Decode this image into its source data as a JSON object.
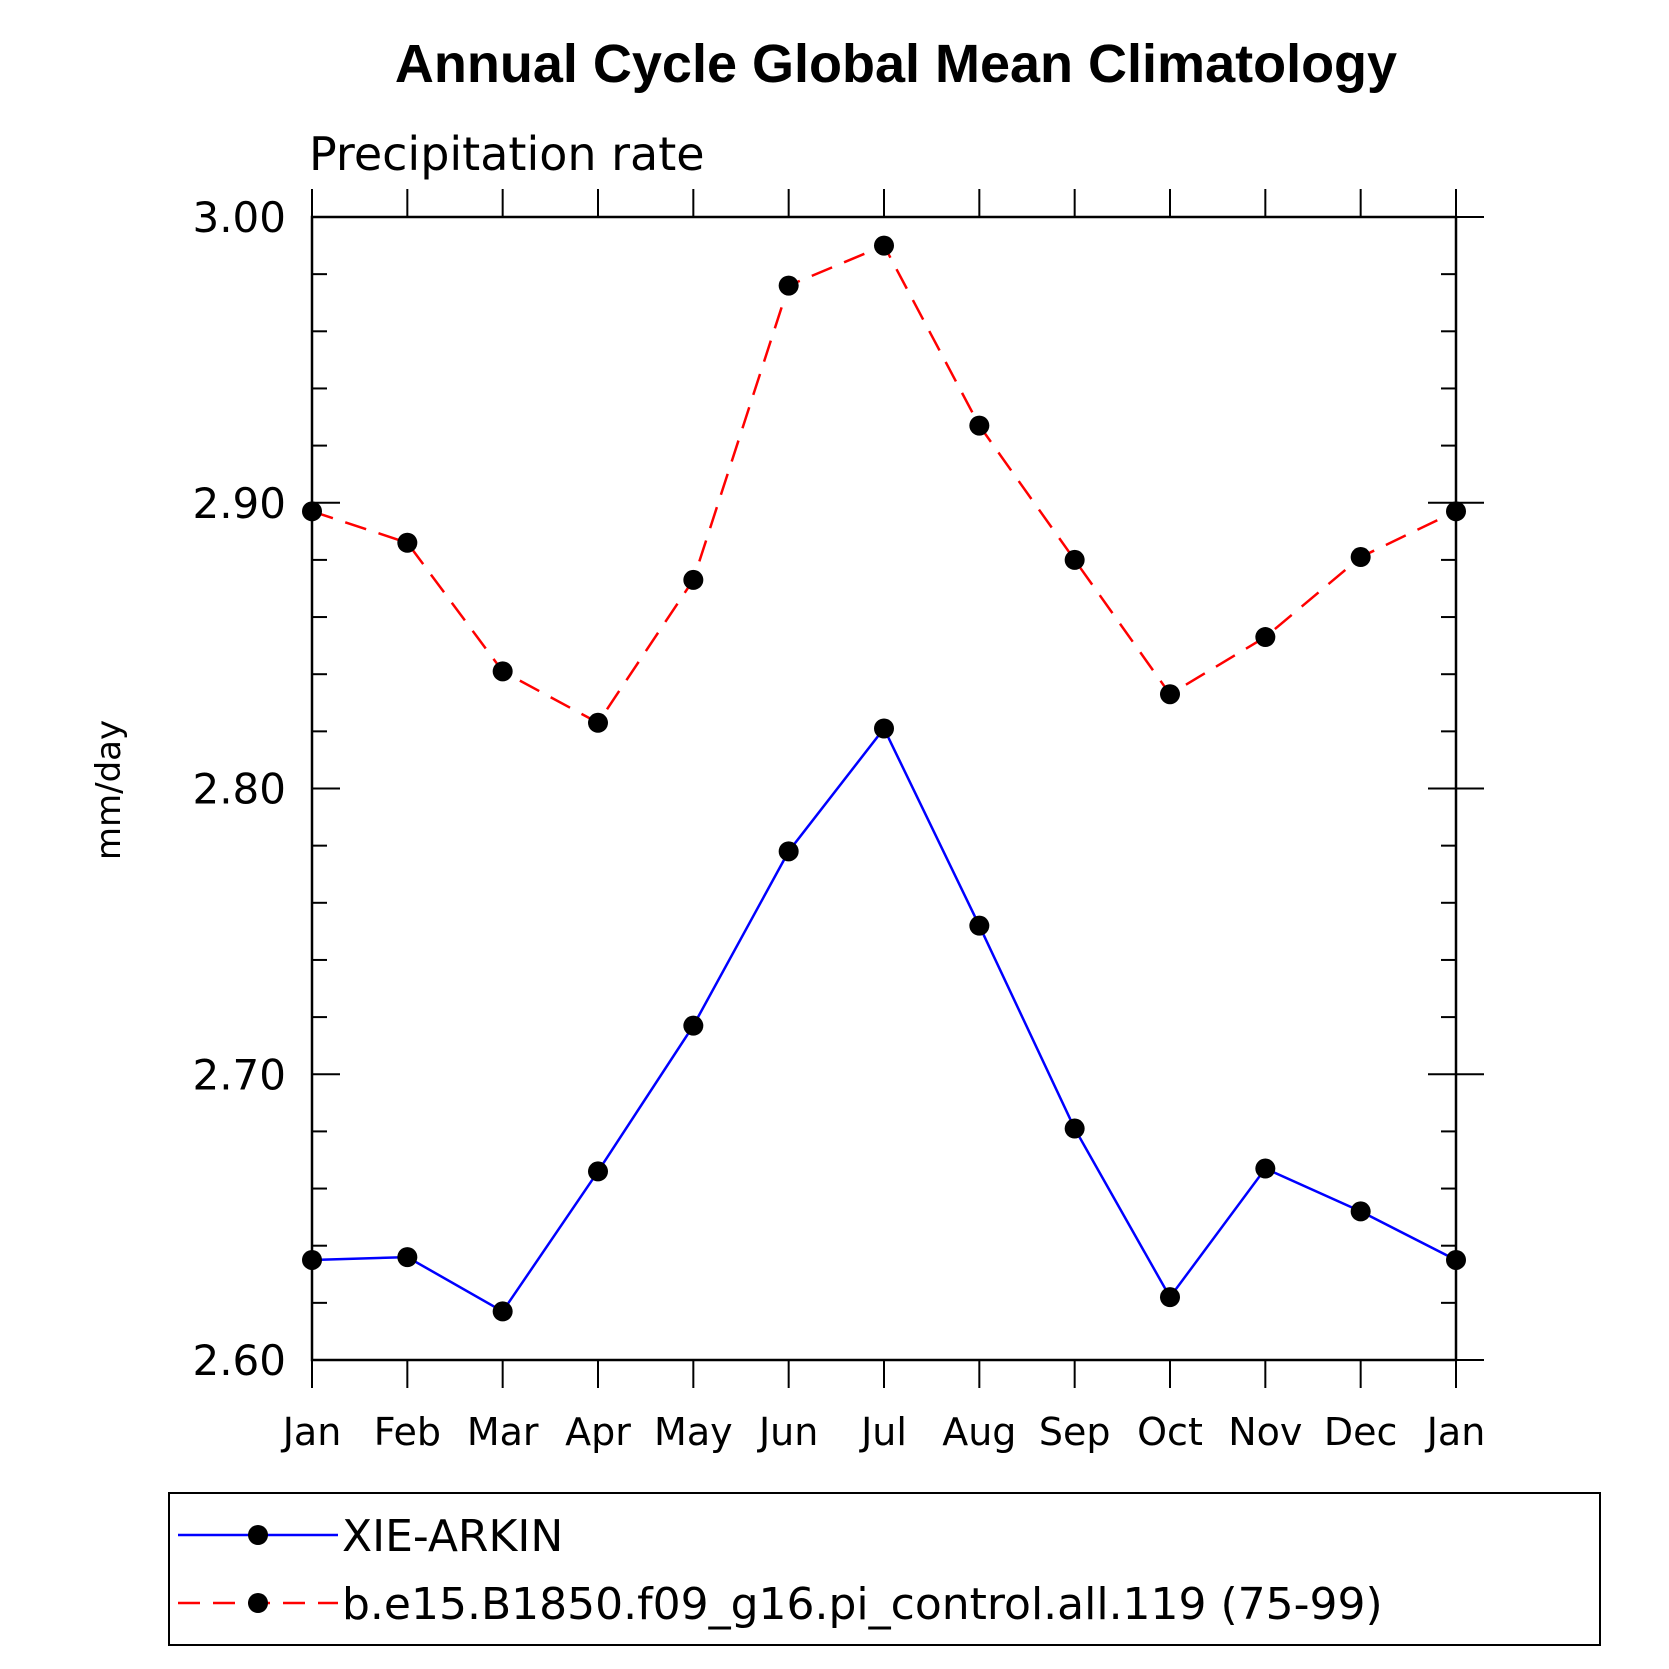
{
  "chart_data": {
    "type": "line",
    "title": "Annual Cycle Global Mean Climatology",
    "subtitle": "Precipitation rate",
    "xlabel": "",
    "ylabel": "mm/day",
    "categories": [
      "Jan",
      "Feb",
      "Mar",
      "Apr",
      "May",
      "Jun",
      "Jul",
      "Aug",
      "Sep",
      "Oct",
      "Nov",
      "Dec",
      "Jan"
    ],
    "ylim": [
      2.6,
      3.0
    ],
    "yticks": [
      "2.60",
      "2.70",
      "2.80",
      "2.90",
      "3.00"
    ],
    "ytick_values": [
      2.6,
      2.7,
      2.8,
      2.9,
      3.0
    ],
    "grid": false,
    "legend_position": "bottom",
    "series": [
      {
        "name": "XIE-ARKIN",
        "color": "#0000ff",
        "line_style": "solid",
        "marker": "filled-circle",
        "values": [
          2.635,
          2.636,
          2.617,
          2.666,
          2.717,
          2.778,
          2.821,
          2.752,
          2.681,
          2.622,
          2.667,
          2.652,
          2.635
        ]
      },
      {
        "name": "b.e15.B1850.f09_g16.pi_control.all.119 (75-99)",
        "color": "#ff0000",
        "line_style": "dashed",
        "marker": "filled-circle",
        "values": [
          2.897,
          2.886,
          2.841,
          2.823,
          2.873,
          2.976,
          2.99,
          2.927,
          2.88,
          2.833,
          2.853,
          2.881,
          2.897
        ]
      }
    ]
  }
}
